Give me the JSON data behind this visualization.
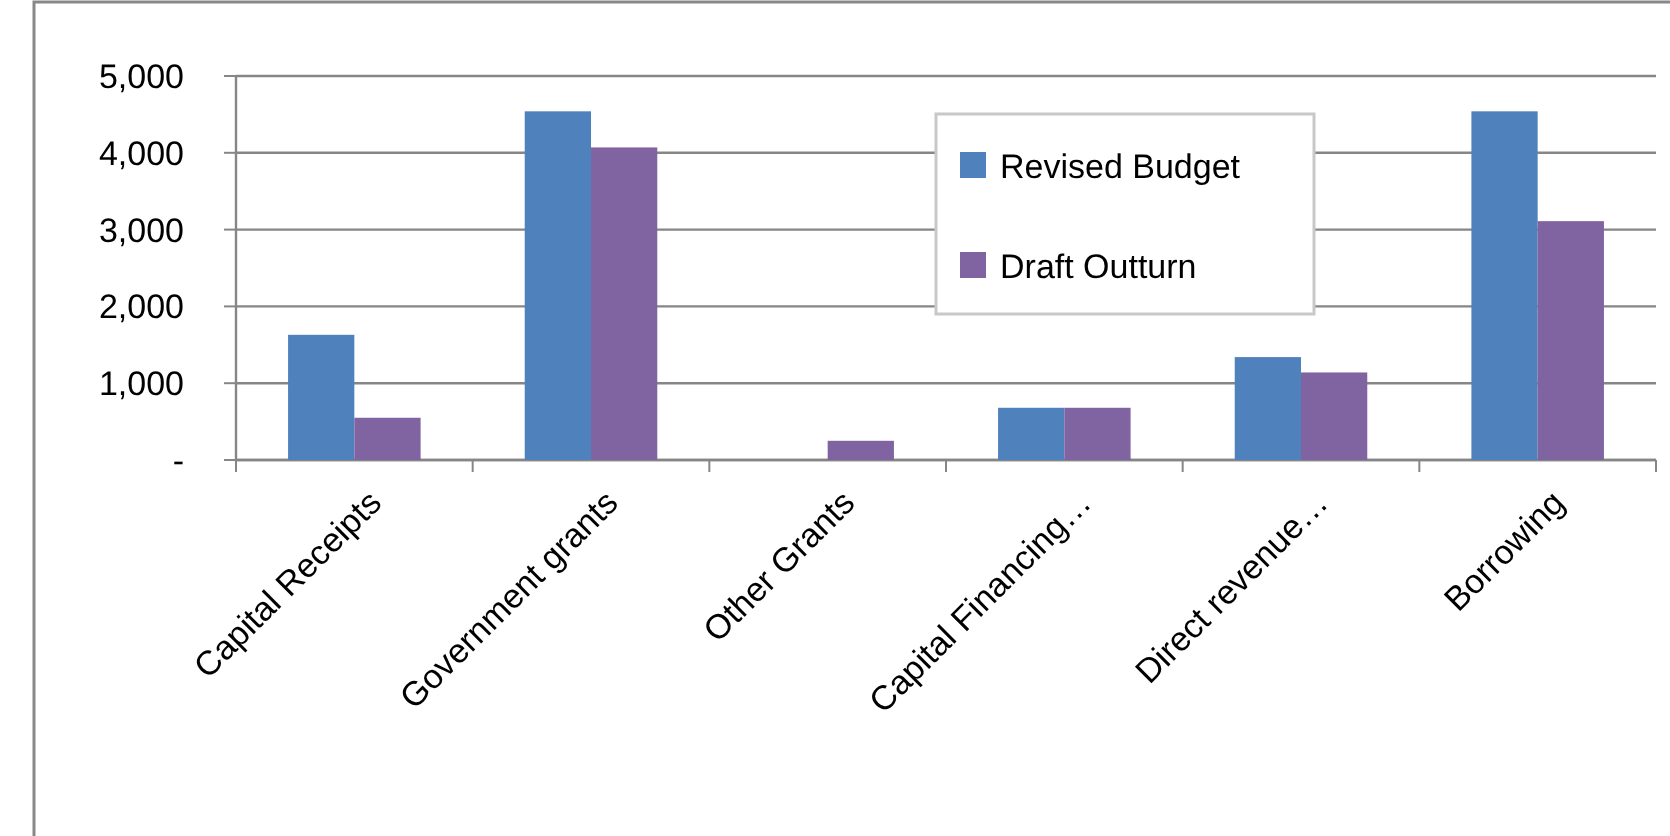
{
  "chart_data": {
    "type": "bar",
    "categories": [
      "Capital Receipts",
      "Government grants",
      "Other Grants",
      "Capital Financing…",
      "Direct revenue…",
      "Borrowing"
    ],
    "series": [
      {
        "name": "Revised Budget",
        "color": "#4f81bd",
        "values": [
          1630,
          4540,
          0,
          680,
          1340,
          4540
        ]
      },
      {
        "name": "Draft Outturn",
        "color": "#8064a2",
        "values": [
          550,
          4070,
          250,
          680,
          1140,
          3110
        ]
      }
    ],
    "ylim": [
      0,
      5000
    ],
    "yticks": [
      {
        "value": 0,
        "label": "-"
      },
      {
        "value": 1000,
        "label": "1,000"
      },
      {
        "value": 2000,
        "label": "2,000"
      },
      {
        "value": 3000,
        "label": "3,000"
      },
      {
        "value": 4000,
        "label": "4,000"
      },
      {
        "value": 5000,
        "label": "5,000"
      }
    ],
    "grid": "y",
    "legend": "top right"
  }
}
